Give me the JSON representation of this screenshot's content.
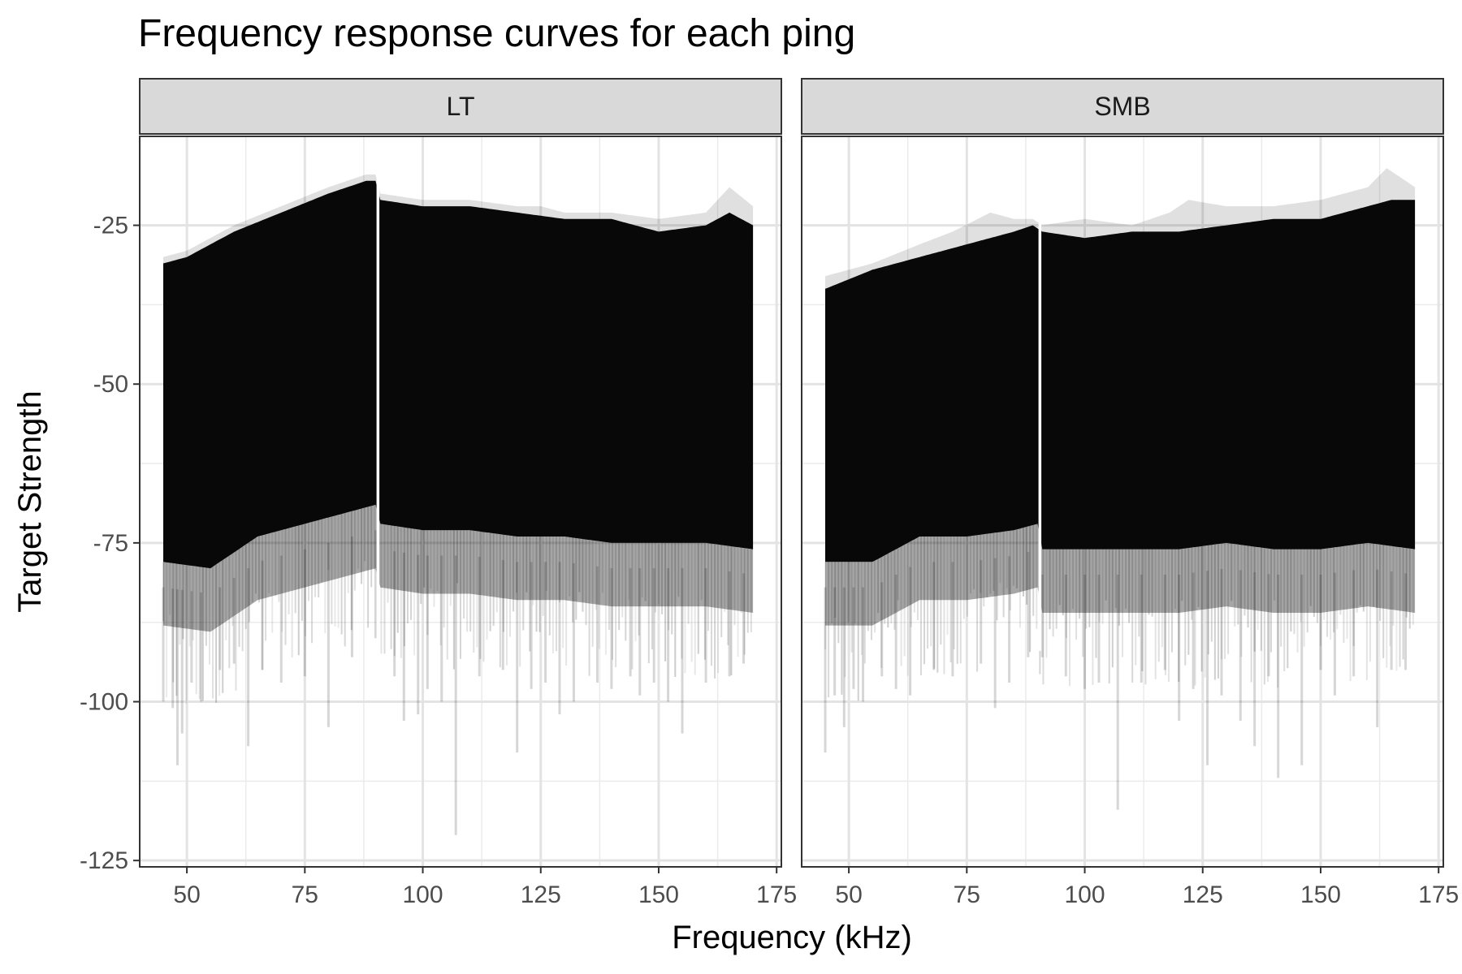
{
  "chart_data": {
    "type": "line",
    "title": "Frequency response curves for each ping",
    "xlabel": "Frequency (kHz)",
    "ylabel": "Target Strength",
    "xlim": [
      40,
      176
    ],
    "ylim": [
      -126,
      -11
    ],
    "x_ticks": [
      50,
      75,
      100,
      125,
      150,
      175
    ],
    "y_ticks": [
      -25,
      -50,
      -75,
      -100,
      -125
    ],
    "grid": true,
    "theme": "bw",
    "line_color": "#000000",
    "line_alpha": 0.1,
    "panels": [
      {
        "name": "LT",
        "freq_range": [
          45,
          170
        ],
        "gap_at": 90.5,
        "core_upper": [
          [
            45,
            -31
          ],
          [
            50,
            -30
          ],
          [
            60,
            -26
          ],
          [
            70,
            -23
          ],
          [
            80,
            -20
          ],
          [
            88,
            -18
          ],
          [
            90,
            -18
          ],
          [
            91,
            -21
          ],
          [
            100,
            -22
          ],
          [
            110,
            -22
          ],
          [
            120,
            -23
          ],
          [
            130,
            -24
          ],
          [
            140,
            -24
          ],
          [
            150,
            -26
          ],
          [
            160,
            -25
          ],
          [
            165,
            -23
          ],
          [
            170,
            -25
          ]
        ],
        "core_lower": [
          [
            45,
            -82
          ],
          [
            55,
            -83
          ],
          [
            65,
            -78
          ],
          [
            75,
            -76
          ],
          [
            85,
            -74
          ],
          [
            90,
            -73
          ],
          [
            91,
            -76
          ],
          [
            100,
            -77
          ],
          [
            110,
            -77
          ],
          [
            120,
            -78
          ],
          [
            130,
            -78
          ],
          [
            140,
            -79
          ],
          [
            150,
            -79
          ],
          [
            160,
            -79
          ],
          [
            170,
            -80
          ]
        ],
        "max_upper": [
          [
            45,
            -30
          ],
          [
            50,
            -29
          ],
          [
            60,
            -25
          ],
          [
            70,
            -22
          ],
          [
            80,
            -19
          ],
          [
            88,
            -17
          ],
          [
            90,
            -17
          ],
          [
            91,
            -20
          ],
          [
            100,
            -21
          ],
          [
            110,
            -21
          ],
          [
            120,
            -22
          ],
          [
            125,
            -22
          ],
          [
            130,
            -23
          ],
          [
            140,
            -23
          ],
          [
            150,
            -24
          ],
          [
            160,
            -23
          ],
          [
            165,
            -19
          ],
          [
            170,
            -22
          ]
        ],
        "spike_lows": [
          [
            45,
            -100
          ],
          [
            47,
            -101
          ],
          [
            48,
            -110
          ],
          [
            49,
            -105
          ],
          [
            51,
            -97
          ],
          [
            53,
            -100
          ],
          [
            57,
            -95
          ],
          [
            60,
            -94
          ],
          [
            63,
            -107
          ],
          [
            66,
            -95
          ],
          [
            70,
            -97
          ],
          [
            75,
            -96
          ],
          [
            80,
            -104
          ],
          [
            85,
            -93
          ],
          [
            90,
            -90
          ],
          [
            94,
            -96
          ],
          [
            96,
            -103
          ],
          [
            99,
            -102
          ],
          [
            101,
            -98
          ],
          [
            104,
            -100
          ],
          [
            107,
            -121
          ],
          [
            112,
            -96
          ],
          [
            117,
            -95
          ],
          [
            120,
            -108
          ],
          [
            123,
            -98
          ],
          [
            126,
            -97
          ],
          [
            129,
            -102
          ],
          [
            132,
            -100
          ],
          [
            137,
            -97
          ],
          [
            140,
            -98
          ],
          [
            144,
            -96
          ],
          [
            146,
            -99
          ],
          [
            149,
            -97
          ],
          [
            152,
            -100
          ],
          [
            155,
            -105
          ],
          [
            160,
            -97
          ],
          [
            165,
            -96
          ],
          [
            168,
            -94
          ]
        ]
      },
      {
        "name": "SMB",
        "freq_range": [
          45,
          170
        ],
        "gap_at": 90.5,
        "core_upper": [
          [
            45,
            -35
          ],
          [
            55,
            -32
          ],
          [
            65,
            -30
          ],
          [
            75,
            -28
          ],
          [
            85,
            -26
          ],
          [
            89,
            -25
          ],
          [
            91,
            -26
          ],
          [
            100,
            -27
          ],
          [
            110,
            -26
          ],
          [
            120,
            -26
          ],
          [
            130,
            -25
          ],
          [
            140,
            -24
          ],
          [
            150,
            -24
          ],
          [
            160,
            -22
          ],
          [
            165,
            -21
          ],
          [
            170,
            -21
          ]
        ],
        "core_lower": [
          [
            45,
            -82
          ],
          [
            55,
            -82
          ],
          [
            65,
            -78
          ],
          [
            75,
            -78
          ],
          [
            85,
            -77
          ],
          [
            90,
            -76
          ],
          [
            91,
            -80
          ],
          [
            100,
            -80
          ],
          [
            110,
            -80
          ],
          [
            120,
            -80
          ],
          [
            130,
            -79
          ],
          [
            140,
            -80
          ],
          [
            150,
            -80
          ],
          [
            160,
            -79
          ],
          [
            170,
            -80
          ]
        ],
        "max_upper": [
          [
            45,
            -33
          ],
          [
            55,
            -31
          ],
          [
            65,
            -28
          ],
          [
            72,
            -26
          ],
          [
            80,
            -23
          ],
          [
            85,
            -24
          ],
          [
            89,
            -24
          ],
          [
            91,
            -25
          ],
          [
            100,
            -24
          ],
          [
            110,
            -25
          ],
          [
            118,
            -23
          ],
          [
            122,
            -21
          ],
          [
            130,
            -22
          ],
          [
            140,
            -22
          ],
          [
            150,
            -21
          ],
          [
            160,
            -19
          ],
          [
            164,
            -16
          ],
          [
            170,
            -19
          ]
        ],
        "spike_lows": [
          [
            45,
            -108
          ],
          [
            47,
            -99
          ],
          [
            49,
            -104
          ],
          [
            51,
            -98
          ],
          [
            53,
            -100
          ],
          [
            57,
            -96
          ],
          [
            60,
            -98
          ],
          [
            63,
            -99
          ],
          [
            68,
            -95
          ],
          [
            72,
            -96
          ],
          [
            78,
            -94
          ],
          [
            81,
            -101
          ],
          [
            84,
            -97
          ],
          [
            88,
            -93
          ],
          [
            91,
            -93
          ],
          [
            96,
            -96
          ],
          [
            100,
            -98
          ],
          [
            103,
            -97
          ],
          [
            107,
            -117
          ],
          [
            112,
            -97
          ],
          [
            117,
            -95
          ],
          [
            120,
            -103
          ],
          [
            123,
            -98
          ],
          [
            126,
            -110
          ],
          [
            129,
            -99
          ],
          [
            133,
            -103
          ],
          [
            136,
            -107
          ],
          [
            139,
            -96
          ],
          [
            141,
            -112
          ],
          [
            146,
            -110
          ],
          [
            150,
            -95
          ],
          [
            153,
            -99
          ],
          [
            157,
            -96
          ],
          [
            162,
            -104
          ],
          [
            165,
            -95
          ],
          [
            168,
            -95
          ]
        ]
      }
    ]
  }
}
